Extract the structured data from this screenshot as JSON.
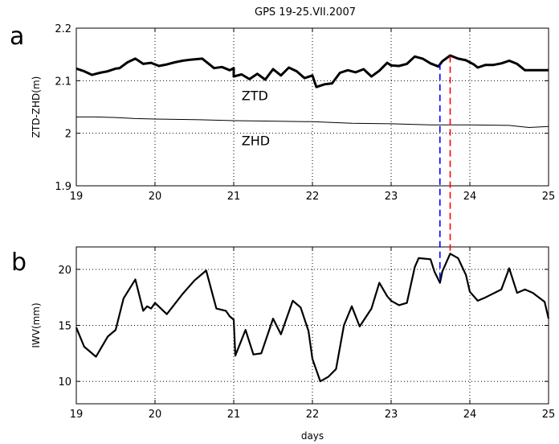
{
  "title": "GPS 19-25.VII.2007",
  "chart_data": [
    {
      "type": "line",
      "panel_label": "a",
      "xlabel": "",
      "ylabel": "ZTD-ZHD(m)",
      "xlim": [
        19,
        25
      ],
      "ylim": [
        1.9,
        2.2
      ],
      "x_ticks": [
        "19",
        "20",
        "21",
        "22",
        "23",
        "24",
        "25"
      ],
      "y_ticks": [
        "1.9",
        "2",
        "2.1",
        "2.2"
      ],
      "grid": true,
      "annotations": [
        {
          "text": "ZTD",
          "x": 21.1,
          "y": 2.063
        },
        {
          "text": "ZHD",
          "x": 21.1,
          "y": 1.977
        }
      ],
      "series": [
        {
          "name": "ZTD",
          "width": 3,
          "color": "#000000",
          "x": [
            19.0,
            19.1,
            19.2,
            19.3,
            19.4,
            19.5,
            19.55,
            19.65,
            19.75,
            19.85,
            19.95,
            20.05,
            20.15,
            20.25,
            20.35,
            20.45,
            20.6,
            20.7,
            20.75,
            20.85,
            20.95,
            21.0,
            21.0,
            21.1,
            21.2,
            21.3,
            21.4,
            21.5,
            21.6,
            21.7,
            21.8,
            21.9,
            22.0,
            22.05,
            22.15,
            22.25,
            22.35,
            22.45,
            22.55,
            22.65,
            22.75,
            22.85,
            22.95,
            23.0,
            23.1,
            23.2,
            23.3,
            23.4,
            23.5,
            23.6,
            23.65,
            23.75,
            23.85,
            23.95,
            24.05,
            24.1,
            24.2,
            24.3,
            24.4,
            24.5,
            24.6,
            24.7,
            24.8,
            24.9,
            25.0
          ],
          "y": [
            2.123,
            2.118,
            2.111,
            2.115,
            2.118,
            2.123,
            2.124,
            2.135,
            2.142,
            2.132,
            2.134,
            2.128,
            2.131,
            2.135,
            2.138,
            2.14,
            2.142,
            2.13,
            2.124,
            2.126,
            2.12,
            2.124,
            2.108,
            2.112,
            2.103,
            2.113,
            2.102,
            2.122,
            2.11,
            2.125,
            2.118,
            2.105,
            2.11,
            2.088,
            2.093,
            2.095,
            2.115,
            2.12,
            2.116,
            2.122,
            2.108,
            2.119,
            2.134,
            2.129,
            2.128,
            2.132,
            2.146,
            2.142,
            2.133,
            2.127,
            2.137,
            2.148,
            2.142,
            2.139,
            2.131,
            2.125,
            2.13,
            2.13,
            2.133,
            2.138,
            2.132,
            2.12,
            2.12,
            2.12,
            2.12
          ]
        },
        {
          "name": "ZHD",
          "width": 1,
          "color": "#000000",
          "x": [
            19.0,
            19.25,
            19.5,
            19.75,
            20.0,
            20.5,
            21.0,
            21.5,
            22.0,
            22.5,
            23.0,
            23.5,
            24.0,
            24.5,
            24.75,
            25.0
          ],
          "y": [
            2.031,
            2.031,
            2.03,
            2.028,
            2.027,
            2.026,
            2.024,
            2.023,
            2.022,
            2.019,
            2.018,
            2.016,
            2.016,
            2.015,
            2.011,
            2.013
          ]
        }
      ]
    },
    {
      "type": "line",
      "panel_label": "b",
      "xlabel": "days",
      "ylabel": "IWV(mm)",
      "xlim": [
        19,
        25
      ],
      "ylim": [
        8,
        22
      ],
      "x_ticks": [
        "19",
        "20",
        "21",
        "22",
        "23",
        "24",
        "25"
      ],
      "y_ticks": [
        "10",
        "15",
        "20"
      ],
      "grid": true,
      "series": [
        {
          "name": "IWV",
          "width": 2.2,
          "color": "#000000",
          "x": [
            19.0,
            19.1,
            19.25,
            19.4,
            19.5,
            19.6,
            19.75,
            19.85,
            19.9,
            19.95,
            20.0,
            20.15,
            20.35,
            20.5,
            20.65,
            20.78,
            20.9,
            20.95,
            21.0,
            21.02,
            21.15,
            21.25,
            21.35,
            21.5,
            21.6,
            21.75,
            21.85,
            21.95,
            22.0,
            22.1,
            22.2,
            22.3,
            22.4,
            22.5,
            22.6,
            22.75,
            22.85,
            22.95,
            23.0,
            23.1,
            23.2,
            23.3,
            23.35,
            23.5,
            23.55,
            23.62,
            23.65,
            23.75,
            23.85,
            23.95,
            24.0,
            24.1,
            24.2,
            24.4,
            24.5,
            24.6,
            24.7,
            24.8,
            24.95,
            25.0
          ],
          "y": [
            14.8,
            13.1,
            12.2,
            14.0,
            14.6,
            17.4,
            19.1,
            16.3,
            16.7,
            16.5,
            17.0,
            16.0,
            17.8,
            19.0,
            19.9,
            16.5,
            16.3,
            15.8,
            15.5,
            12.3,
            14.6,
            12.4,
            12.5,
            15.6,
            14.2,
            17.2,
            16.6,
            14.5,
            12.0,
            10.0,
            10.4,
            11.1,
            15.0,
            16.7,
            14.9,
            16.5,
            18.8,
            17.6,
            17.2,
            16.8,
            17.0,
            20.2,
            21.0,
            20.9,
            19.8,
            18.8,
            19.8,
            21.4,
            21.0,
            19.5,
            18.0,
            17.2,
            17.5,
            18.2,
            20.1,
            17.9,
            18.2,
            17.9,
            17.1,
            15.6
          ]
        }
      ]
    }
  ],
  "markers": [
    {
      "x": 23.62,
      "color": "#0000ff",
      "y_top_a": 2.133,
      "y_bottom_b": 18.8
    },
    {
      "x": 23.75,
      "color": "#ff0000",
      "y_top_a": 2.147,
      "y_bottom_b": 21.4
    }
  ]
}
